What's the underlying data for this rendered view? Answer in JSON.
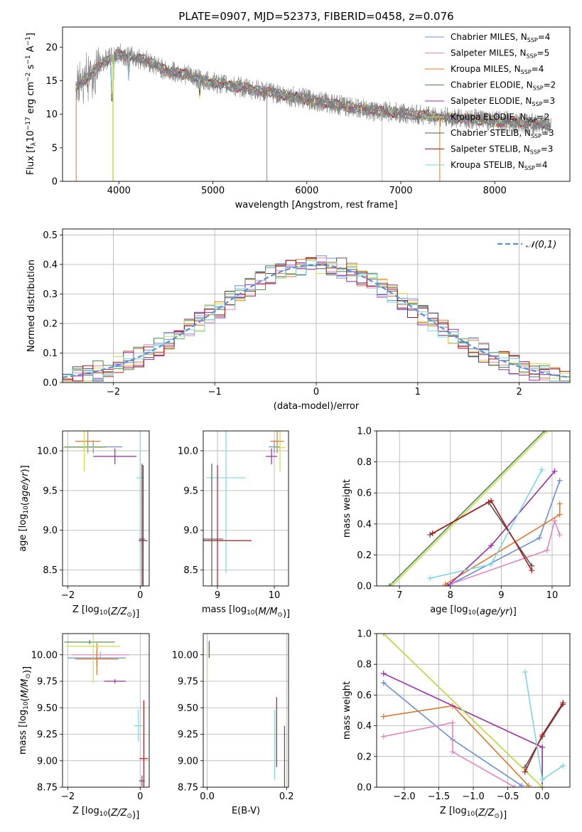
{
  "figure_title": "PLATE=0907, MJD=52373, FIBERID=0458, z=0.076",
  "series": [
    {
      "name": "Chabrier MILES",
      "nssp": "4",
      "color": "#6a8fdc"
    },
    {
      "name": "Salpeter MILES",
      "nssp": "5",
      "color": "#e586c2"
    },
    {
      "name": "Kroupa MILES",
      "nssp": "4",
      "color": "#e0782a"
    },
    {
      "name": "Chabrier ELODIE",
      "nssp": "2",
      "color": "#4e8a4e"
    },
    {
      "name": "Salpeter ELODIE",
      "nssp": "3",
      "color": "#9a2ca8"
    },
    {
      "name": "Kroupa ELODIE",
      "nssp": "2",
      "color": "#c8e04a"
    },
    {
      "name": "Chabrier STELIB",
      "nssp": "3",
      "color": "#555555"
    },
    {
      "name": "Salpeter STELIB",
      "nssp": "3",
      "color": "#b01818"
    },
    {
      "name": "Kroupa STELIB",
      "nssp": "4",
      "color": "#7ed6e0"
    }
  ],
  "observed_color": "#808080",
  "chart_data": [
    {
      "id": "spectrum",
      "type": "line",
      "title": "PLATE=0907, MJD=52373, FIBERID=0458, z=0.076",
      "xlabel": "wavelength [Angstrom, rest frame]",
      "ylabel": "Flux [f_λ 10^-17 erg cm^-2 s^-1 A^-1]",
      "xlim": [
        3400,
        8800
      ],
      "ylim": [
        0,
        23
      ],
      "xticks": [
        4000,
        5000,
        6000,
        7000,
        8000
      ],
      "yticks": [
        0,
        5,
        10,
        15,
        20
      ],
      "continuum": {
        "x": [
          3550,
          3700,
          3850,
          4000,
          4150,
          4300,
          4500,
          4700,
          4900,
          5100,
          5300,
          5500,
          5700,
          5900,
          6100,
          6300,
          6500,
          6700,
          6900,
          7100,
          7300,
          7500,
          7700,
          7900,
          8100,
          8300,
          8500,
          8600
        ],
        "y": [
          14,
          16,
          18,
          19,
          18.5,
          18,
          16.5,
          16,
          15,
          14.5,
          14,
          13.5,
          13,
          12.5,
          12,
          11.5,
          11,
          10.5,
          10.3,
          10,
          9.8,
          9.5,
          9.3,
          9.1,
          8.9,
          8.7,
          8.5,
          8.4
        ]
      },
      "grid": false,
      "legend_position": "top-right"
    },
    {
      "id": "residuals",
      "type": "step",
      "xlabel": "(data-model)/error",
      "ylabel": "Normed distribution",
      "xlim": [
        -2.5,
        2.5
      ],
      "ylim": [
        0,
        0.52
      ],
      "xticks": [
        -2,
        -1,
        0,
        1,
        2
      ],
      "yticks": [
        0.0,
        0.1,
        0.2,
        0.3,
        0.4,
        0.5
      ],
      "reference_label": "𝒩(0,1)",
      "grid": true,
      "legend_position": "top-right"
    },
    {
      "id": "age_vs_Z",
      "type": "errorbar",
      "xlabel": "Z [log10(Z/Z⊙)]",
      "ylabel": "age [log10(age/yr)]",
      "xlim": [
        -2.15,
        0.25
      ],
      "ylim": [
        8.3,
        10.25
      ],
      "xticks": [
        -2,
        0
      ],
      "yticks": [
        8.5,
        9.0,
        9.5,
        10.0
      ],
      "points": [
        {
          "s": 0,
          "x": -1.3,
          "y": 10.05,
          "xerr": 0.8,
          "yerr": 0.08
        },
        {
          "s": 2,
          "x": -1.45,
          "y": 10.12,
          "xerr": 0.35,
          "yerr": 0.15
        },
        {
          "s": 4,
          "x": -0.7,
          "y": 9.93,
          "xerr": 0.6,
          "yerr": 0.1
        },
        {
          "s": 5,
          "x": -1.55,
          "y": 10.04,
          "xerr": 0.6,
          "yerr": 0.3
        },
        {
          "s": 8,
          "x": 0.0,
          "y": 9.66,
          "xerr": 0.1,
          "yerr": 1.2
        },
        {
          "s": 7,
          "x": 0.08,
          "y": 8.87,
          "xerr": 0.12,
          "yerr": 0.95
        },
        {
          "s": 6,
          "x": 0.05,
          "y": 8.89,
          "xerr": 0.08,
          "yerr": 0.95
        }
      ]
    },
    {
      "id": "age_vs_mass",
      "type": "errorbar",
      "xlabel": "mass [log10(M/M⊙)]",
      "ylabel": "",
      "xlim": [
        8.75,
        10.25
      ],
      "ylim": [
        8.3,
        10.25
      ],
      "xticks": [
        9,
        10
      ],
      "yticks": [
        8.5,
        9.0,
        9.5,
        10.0
      ],
      "points": [
        {
          "s": 0,
          "x": 10.0,
          "y": 10.05,
          "xerr": 0.1,
          "yerr": 0.08
        },
        {
          "s": 2,
          "x": 10.05,
          "y": 10.12,
          "xerr": 0.12,
          "yerr": 0.15
        },
        {
          "s": 4,
          "x": 9.95,
          "y": 9.93,
          "xerr": 0.1,
          "yerr": 0.1
        },
        {
          "s": 5,
          "x": 10.1,
          "y": 10.04,
          "xerr": 0.1,
          "yerr": 0.3
        },
        {
          "s": 8,
          "x": 9.15,
          "y": 9.66,
          "xerr": 0.35,
          "yerr": 1.2
        },
        {
          "s": 7,
          "x": 9.0,
          "y": 8.87,
          "xerr": 0.6,
          "yerr": 0.95
        },
        {
          "s": 6,
          "x": 8.9,
          "y": 8.89,
          "xerr": 0.2,
          "yerr": 0.95
        }
      ]
    },
    {
      "id": "weight_vs_age",
      "type": "line",
      "xlabel": "age [log10(age/yr)]",
      "ylabel": "mass weight",
      "xlim": [
        6.55,
        10.35
      ],
      "ylim": [
        0,
        1.0
      ],
      "xticks": [
        7,
        8,
        9,
        10
      ],
      "yticks": [
        0.0,
        0.2,
        0.4,
        0.6,
        0.8,
        1.0
      ],
      "lines": [
        {
          "s": 0,
          "x": [
            8.0,
            9.75,
            10.15
          ],
          "y": [
            0.01,
            0.31,
            0.68
          ]
        },
        {
          "s": 1,
          "x": 7.9,
          "y": 0,
          "note": "start"
        },
        {
          "s": 1,
          "x": [
            7.9,
            9.9,
            10.05,
            10.15
          ],
          "y": [
            0.0,
            0.23,
            0.42,
            0.33
          ]
        },
        {
          "s": 2,
          "x": [
            7.9,
            10.15,
            10.15
          ],
          "y": [
            0.01,
            0.46,
            0.53
          ]
        },
        {
          "s": 3,
          "x": [
            6.8,
            9.85
          ],
          "y": [
            0.0,
            1.0
          ]
        },
        {
          "s": 4,
          "x": [
            7.95,
            8.8,
            10.05
          ],
          "y": [
            0.0,
            0.26,
            0.74
          ]
        },
        {
          "s": 5,
          "x": [
            6.85,
            9.9
          ],
          "y": [
            0.0,
            1.0
          ]
        },
        {
          "s": 6,
          "x": [
            7.6,
            8.75,
            9.6
          ],
          "y": [
            0.33,
            0.54,
            0.13
          ]
        },
        {
          "s": 7,
          "x": [
            7.65,
            8.8,
            9.6
          ],
          "y": [
            0.34,
            0.55,
            0.1
          ]
        },
        {
          "s": 8,
          "x": [
            7.6,
            8.8,
            9.8
          ],
          "y": [
            0.05,
            0.14,
            0.75
          ]
        }
      ]
    },
    {
      "id": "mass_vs_Z",
      "type": "errorbar",
      "xlabel": "Z [log10(Z/Z⊙)]",
      "ylabel": "mass [log10(M/M⊙)]",
      "xlim": [
        -2.15,
        0.25
      ],
      "ylim": [
        8.75,
        10.2
      ],
      "xticks": [
        -2,
        0
      ],
      "yticks": [
        8.75,
        9.0,
        9.25,
        9.5,
        9.75,
        10.0
      ],
      "points": [
        {
          "s": 0,
          "x": -1.2,
          "y": 9.97,
          "xerr": 0.8,
          "yerr": 0.07
        },
        {
          "s": 1,
          "x": -1.1,
          "y": 10.0,
          "xerr": 0.8,
          "yerr": 0.03
        },
        {
          "s": 2,
          "x": -1.2,
          "y": 9.96,
          "xerr": 0.6,
          "yerr": 0.15
        },
        {
          "s": 3,
          "x": -1.4,
          "y": 10.12,
          "xerr": 0.7,
          "yerr": 0.02
        },
        {
          "s": 4,
          "x": -0.7,
          "y": 9.75,
          "xerr": 0.3,
          "yerr": 0.02
        },
        {
          "s": 5,
          "x": -1.3,
          "y": 10.08,
          "xerr": 0.75,
          "yerr": 0.35
        },
        {
          "s": 8,
          "x": -0.05,
          "y": 9.33,
          "xerr": 0.12,
          "yerr": 0.15
        },
        {
          "s": 7,
          "x": 0.1,
          "y": 9.02,
          "xerr": 0.12,
          "yerr": 0.55
        },
        {
          "s": 6,
          "x": 0.05,
          "y": 8.81,
          "xerr": 0.08,
          "yerr": 0.05
        }
      ]
    },
    {
      "id": "mass_vs_EBV",
      "type": "errorbar",
      "xlabel": "E(B-V)",
      "ylabel": "",
      "xlim": [
        -0.01,
        0.205
      ],
      "ylim": [
        8.75,
        10.2
      ],
      "xticks": [
        0.0,
        0.2
      ],
      "yticks": [
        8.75,
        9.0,
        9.25,
        9.5,
        9.75,
        10.0
      ],
      "points": [
        {
          "s": 5,
          "x": 0.0,
          "y": 9.9,
          "xerr": 0.0,
          "yerr": 0.18
        },
        {
          "s": 6,
          "x": 0.005,
          "y": 10.05,
          "xerr": 0.0,
          "yerr": 0.08
        },
        {
          "s": 7,
          "x": 0.175,
          "y": 9.27,
          "xerr": 0.0,
          "yerr": 0.33
        },
        {
          "s": 8,
          "x": 0.17,
          "y": 9.15,
          "xerr": 0.0,
          "yerr": 0.33
        },
        {
          "s": 6,
          "x": 0.195,
          "y": 9.02,
          "xerr": 0.0,
          "yerr": 0.31
        }
      ]
    },
    {
      "id": "weight_vs_Z",
      "type": "line",
      "xlabel": "Z [log10(Z/Z⊙)]",
      "ylabel": "mass weight",
      "xlim": [
        -2.4,
        0.4
      ],
      "ylim": [
        0,
        1.0
      ],
      "xticks": [
        -2.0,
        -1.5,
        -1.0,
        -0.5,
        0.0
      ],
      "yticks": [
        0.0,
        0.2,
        0.4,
        0.6,
        0.8,
        1.0
      ],
      "lines": [
        {
          "s": 0,
          "x": [
            -2.3,
            -1.3,
            -0.3
          ],
          "y": [
            0.68,
            0.31,
            0.01
          ]
        },
        {
          "s": 1,
          "x": [
            -2.3,
            -1.3,
            -1.3,
            -0.4
          ],
          "y": [
            0.33,
            0.42,
            0.23,
            0.0
          ]
        },
        {
          "s": 2,
          "x": [
            -2.3,
            -1.3,
            -0.2
          ],
          "y": [
            0.46,
            0.53,
            0.01
          ]
        },
        {
          "s": 3,
          "x": [
            -2.3,
            0.0
          ],
          "y": [
            1.0,
            0.0
          ]
        },
        {
          "s": 4,
          "x": [
            -2.3,
            0.0,
            0.0
          ],
          "y": [
            0.74,
            0.26,
            0.0
          ]
        },
        {
          "s": 5,
          "x": [
            -2.3,
            0.0
          ],
          "y": [
            1.0,
            0.0
          ]
        },
        {
          "s": 6,
          "x": [
            -0.25,
            0.0,
            0.3
          ],
          "y": [
            0.13,
            0.33,
            0.54
          ]
        },
        {
          "s": 7,
          "x": [
            -0.25,
            0.0,
            0.3
          ],
          "y": [
            0.1,
            0.34,
            0.55
          ]
        },
        {
          "s": 8,
          "x": [
            -0.25,
            0.0,
            0.3
          ],
          "y": [
            0.75,
            0.05,
            0.14
          ]
        }
      ]
    }
  ]
}
